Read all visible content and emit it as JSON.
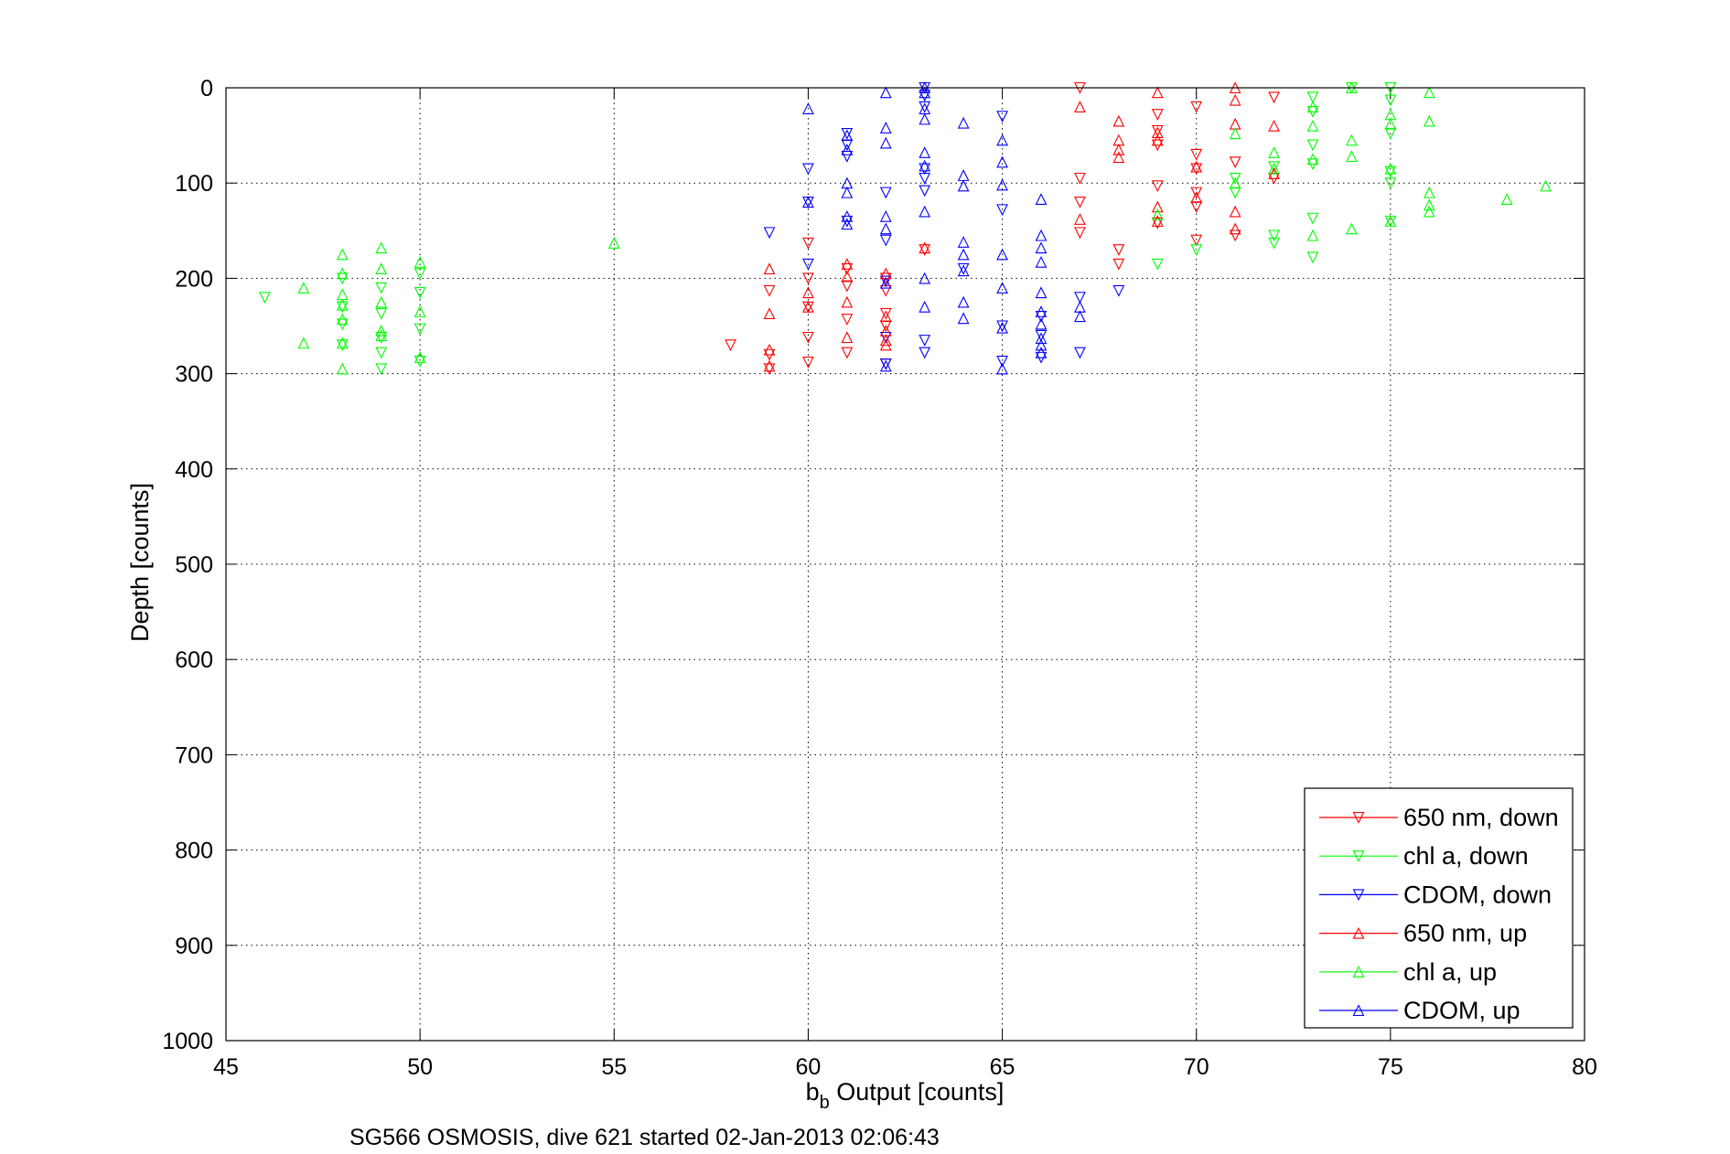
{
  "chart_data": {
    "type": "scatter",
    "xlabel_main": "b",
    "xlabel_sub": "b",
    "xlabel_rest": " Output [counts]",
    "ylabel": "Depth [counts]",
    "caption": "SG566 OSMOSIS, dive 621 started 02-Jan-2013 02:06:43",
    "xlim": [
      45,
      80
    ],
    "ylim": [
      0,
      1000
    ],
    "y_reversed": true,
    "grid": true,
    "grid_style": "dotted",
    "legend_placement": "bottom-right",
    "x_ticks": [
      45,
      50,
      55,
      60,
      65,
      70,
      75,
      80
    ],
    "y_ticks": [
      0,
      100,
      200,
      300,
      400,
      500,
      600,
      700,
      800,
      900,
      1000
    ],
    "x_tick_labels": [
      "45",
      "50",
      "55",
      "60",
      "65",
      "70",
      "75",
      "80"
    ],
    "y_tick_labels": [
      "0",
      "100",
      "200",
      "300",
      "400",
      "500",
      "600",
      "700",
      "800",
      "900",
      "1000"
    ],
    "series": [
      {
        "name": "650 nm, down",
        "color": "#ff0000",
        "marker": "triangle-down",
        "points": [
          [
            58,
            270
          ],
          [
            59,
            213
          ],
          [
            59,
            280
          ],
          [
            59,
            295
          ],
          [
            60,
            163
          ],
          [
            60,
            200
          ],
          [
            60,
            230
          ],
          [
            60,
            262
          ],
          [
            60,
            288
          ],
          [
            61,
            190
          ],
          [
            61,
            208
          ],
          [
            61,
            243
          ],
          [
            61,
            278
          ],
          [
            62,
            200
          ],
          [
            62,
            213
          ],
          [
            62,
            237
          ],
          [
            62,
            250
          ],
          [
            62,
            290
          ],
          [
            63,
            170
          ],
          [
            67,
            0
          ],
          [
            67,
            95
          ],
          [
            67,
            120
          ],
          [
            67,
            152
          ],
          [
            68,
            170
          ],
          [
            68,
            185
          ],
          [
            69,
            28
          ],
          [
            69,
            45
          ],
          [
            69,
            60
          ],
          [
            69,
            103
          ],
          [
            69,
            142
          ],
          [
            70,
            20
          ],
          [
            70,
            70
          ],
          [
            70,
            85
          ],
          [
            70,
            110
          ],
          [
            70,
            125
          ],
          [
            70,
            160
          ],
          [
            71,
            78
          ],
          [
            71,
            155
          ],
          [
            72,
            10
          ],
          [
            72,
            95
          ]
        ]
      },
      {
        "name": "chl a, down",
        "color": "#00ff00",
        "marker": "triangle-down",
        "points": [
          [
            46,
            220
          ],
          [
            48,
            200
          ],
          [
            48,
            230
          ],
          [
            48,
            248
          ],
          [
            48,
            270
          ],
          [
            49,
            210
          ],
          [
            49,
            237
          ],
          [
            49,
            262
          ],
          [
            49,
            278
          ],
          [
            49,
            295
          ],
          [
            50,
            195
          ],
          [
            50,
            215
          ],
          [
            50,
            253
          ],
          [
            50,
            287
          ],
          [
            69,
            185
          ],
          [
            70,
            170
          ],
          [
            71,
            95
          ],
          [
            71,
            110
          ],
          [
            72,
            155
          ],
          [
            72,
            163
          ],
          [
            72,
            83
          ],
          [
            73,
            10
          ],
          [
            73,
            25
          ],
          [
            73,
            60
          ],
          [
            73,
            80
          ],
          [
            73,
            137
          ],
          [
            73,
            178
          ],
          [
            74,
            0
          ],
          [
            75,
            0
          ],
          [
            75,
            13
          ],
          [
            75,
            48
          ],
          [
            75,
            88
          ],
          [
            75,
            100
          ],
          [
            75,
            140
          ]
        ]
      },
      {
        "name": "CDOM, down",
        "color": "#0000ff",
        "marker": "triangle-down",
        "points": [
          [
            59,
            152
          ],
          [
            60,
            85
          ],
          [
            60,
            120
          ],
          [
            60,
            185
          ],
          [
            61,
            48
          ],
          [
            61,
            60
          ],
          [
            61,
            72
          ],
          [
            61,
            140
          ],
          [
            62,
            110
          ],
          [
            62,
            160
          ],
          [
            62,
            203
          ],
          [
            62,
            262
          ],
          [
            62,
            290
          ],
          [
            63,
            0
          ],
          [
            63,
            8
          ],
          [
            63,
            20
          ],
          [
            63,
            85
          ],
          [
            63,
            95
          ],
          [
            63,
            108
          ],
          [
            63,
            265
          ],
          [
            63,
            278
          ],
          [
            64,
            190
          ],
          [
            65,
            30
          ],
          [
            65,
            128
          ],
          [
            65,
            250
          ],
          [
            65,
            287
          ],
          [
            66,
            240
          ],
          [
            66,
            260
          ],
          [
            66,
            283
          ],
          [
            67,
            220
          ],
          [
            67,
            278
          ],
          [
            68,
            213
          ]
        ]
      },
      {
        "name": "650 nm, up",
        "color": "#ff0000",
        "marker": "triangle-up",
        "points": [
          [
            59,
            190
          ],
          [
            59,
            237
          ],
          [
            59,
            275
          ],
          [
            59,
            292
          ],
          [
            60,
            215
          ],
          [
            60,
            230
          ],
          [
            61,
            185
          ],
          [
            61,
            198
          ],
          [
            61,
            225
          ],
          [
            61,
            262
          ],
          [
            62,
            195
          ],
          [
            62,
            240
          ],
          [
            62,
            255
          ],
          [
            62,
            265
          ],
          [
            62,
            270
          ],
          [
            63,
            168
          ],
          [
            67,
            20
          ],
          [
            67,
            138
          ],
          [
            68,
            35
          ],
          [
            68,
            55
          ],
          [
            68,
            65
          ],
          [
            68,
            73
          ],
          [
            69,
            5
          ],
          [
            69,
            47
          ],
          [
            69,
            55
          ],
          [
            69,
            125
          ],
          [
            69,
            140
          ],
          [
            70,
            83
          ],
          [
            70,
            115
          ],
          [
            71,
            0
          ],
          [
            71,
            13
          ],
          [
            71,
            38
          ],
          [
            71,
            130
          ],
          [
            71,
            148
          ],
          [
            72,
            40
          ],
          [
            72,
            90
          ]
        ]
      },
      {
        "name": "chl a, up",
        "color": "#00ff00",
        "marker": "triangle-up",
        "points": [
          [
            47,
            210
          ],
          [
            47,
            268
          ],
          [
            48,
            175
          ],
          [
            48,
            195
          ],
          [
            48,
            217
          ],
          [
            48,
            228
          ],
          [
            48,
            243
          ],
          [
            48,
            268
          ],
          [
            48,
            295
          ],
          [
            49,
            168
          ],
          [
            49,
            190
          ],
          [
            49,
            225
          ],
          [
            49,
            255
          ],
          [
            49,
            260
          ],
          [
            50,
            183
          ],
          [
            50,
            235
          ],
          [
            50,
            283
          ],
          [
            55,
            163
          ],
          [
            69,
            133
          ],
          [
            71,
            48
          ],
          [
            71,
            100
          ],
          [
            72,
            68
          ],
          [
            72,
            85
          ],
          [
            73,
            40
          ],
          [
            73,
            20
          ],
          [
            73,
            75
          ],
          [
            73,
            155
          ],
          [
            74,
            0
          ],
          [
            74,
            55
          ],
          [
            74,
            72
          ],
          [
            74,
            148
          ],
          [
            75,
            28
          ],
          [
            75,
            38
          ],
          [
            75,
            85
          ],
          [
            75,
            140
          ],
          [
            76,
            5
          ],
          [
            76,
            35
          ],
          [
            76,
            110
          ],
          [
            76,
            123
          ],
          [
            76,
            130
          ],
          [
            78,
            117
          ],
          [
            79,
            103
          ]
        ]
      },
      {
        "name": "CDOM, up",
        "color": "#0000ff",
        "marker": "triangle-up",
        "points": [
          [
            60,
            22
          ],
          [
            60,
            120
          ],
          [
            61,
            50
          ],
          [
            61,
            65
          ],
          [
            61,
            100
          ],
          [
            61,
            110
          ],
          [
            61,
            135
          ],
          [
            61,
            143
          ],
          [
            62,
            5
          ],
          [
            62,
            42
          ],
          [
            62,
            58
          ],
          [
            62,
            135
          ],
          [
            62,
            148
          ],
          [
            62,
            205
          ],
          [
            62,
            292
          ],
          [
            63,
            0
          ],
          [
            63,
            5
          ],
          [
            63,
            22
          ],
          [
            63,
            33
          ],
          [
            63,
            68
          ],
          [
            63,
            82
          ],
          [
            63,
            130
          ],
          [
            63,
            200
          ],
          [
            63,
            230
          ],
          [
            64,
            37
          ],
          [
            64,
            92
          ],
          [
            64,
            103
          ],
          [
            64,
            162
          ],
          [
            64,
            175
          ],
          [
            64,
            192
          ],
          [
            64,
            225
          ],
          [
            64,
            242
          ],
          [
            65,
            55
          ],
          [
            65,
            78
          ],
          [
            65,
            102
          ],
          [
            65,
            175
          ],
          [
            65,
            210
          ],
          [
            65,
            252
          ],
          [
            65,
            295
          ],
          [
            66,
            117
          ],
          [
            66,
            155
          ],
          [
            66,
            168
          ],
          [
            66,
            183
          ],
          [
            66,
            215
          ],
          [
            66,
            235
          ],
          [
            66,
            248
          ],
          [
            66,
            263
          ],
          [
            66,
            270
          ],
          [
            66,
            278
          ],
          [
            67,
            230
          ],
          [
            67,
            240
          ]
        ]
      }
    ]
  }
}
